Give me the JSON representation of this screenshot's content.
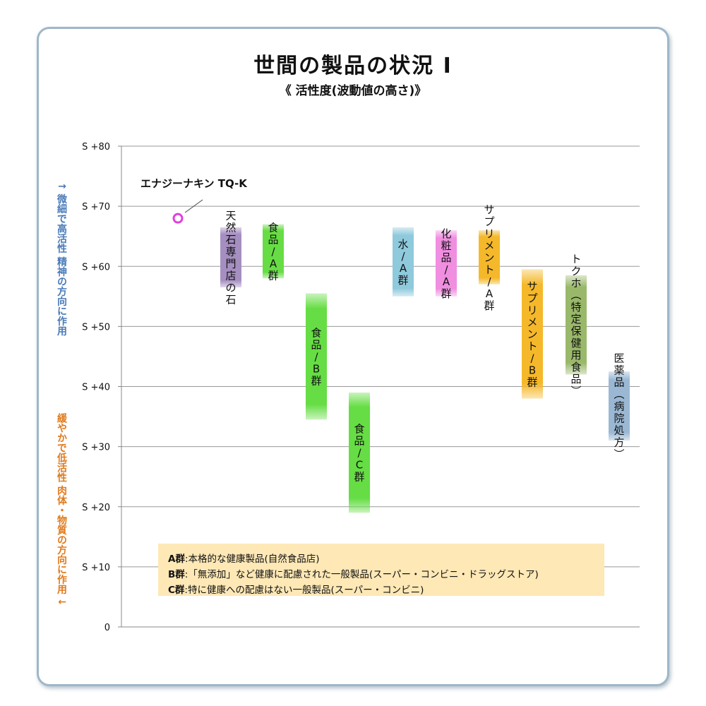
{
  "chart_data": {
    "type": "bar",
    "title": "世間の製品の状況 Ⅰ",
    "subtitle": "《 活性度(波動値の高さ)》",
    "ylabel_top": "↑ 微細で高活性 精神の方向に作用",
    "ylabel_bottom": "緩やかで低活性 肉体・物質の方向に作用 ↓",
    "ylim": [
      0,
      80
    ],
    "yticks": [
      {
        "value": 0,
        "label": "0"
      },
      {
        "value": 10,
        "label": "S +10"
      },
      {
        "value": 20,
        "label": "S +20"
      },
      {
        "value": 30,
        "label": "S +30"
      },
      {
        "value": 40,
        "label": "S +40"
      },
      {
        "value": 50,
        "label": "S +50"
      },
      {
        "value": 60,
        "label": "S +60"
      },
      {
        "value": 70,
        "label": "S +70"
      },
      {
        "value": 80,
        "label": "S +80"
      }
    ],
    "highlight_point": {
      "label": "エナジーナキン TQ-K",
      "value": 68
    },
    "bars": [
      {
        "label": "天然石専門店の石",
        "low": 56.5,
        "high": 66.5,
        "color": "#a58ec0"
      },
      {
        "label": "食品/A群",
        "low": 58,
        "high": 67,
        "color": "#66dd44"
      },
      {
        "label": "食品/B群",
        "low": 34.5,
        "high": 55.5,
        "color": "#66dd44"
      },
      {
        "label": "食品/C群",
        "low": 19,
        "high": 39,
        "color": "#66dd44"
      },
      {
        "label": "水/A群",
        "low": 55,
        "high": 66.5,
        "color": "#8ec9dc"
      },
      {
        "label": "化粧品/A群",
        "low": 55,
        "high": 66,
        "color": "#f08ee0"
      },
      {
        "label": "サプリメント/A群",
        "low": 57,
        "high": 66,
        "color": "#f5b82a"
      },
      {
        "label": "サプリメント/B群",
        "low": 38,
        "high": 59.5,
        "color": "#f5b82a"
      },
      {
        "label": "トクホ(特定保健用食品)",
        "low": 42,
        "high": 58.5,
        "color": "#99b86a"
      },
      {
        "label": "医薬品(病院処方)",
        "low": 31,
        "high": 42.5,
        "color": "#9ab8d4"
      }
    ]
  },
  "legend": [
    {
      "key": "A群",
      "text": ":本格的な健康製品(自然食品店)"
    },
    {
      "key": "B群",
      "text": ":「無添加」など健康に配慮された一般製品(スーパー・コンビニ・ドラッグストア)"
    },
    {
      "key": "C群",
      "text": ":特に健康への配慮はない一般製品(スーパー・コンビニ)"
    }
  ]
}
